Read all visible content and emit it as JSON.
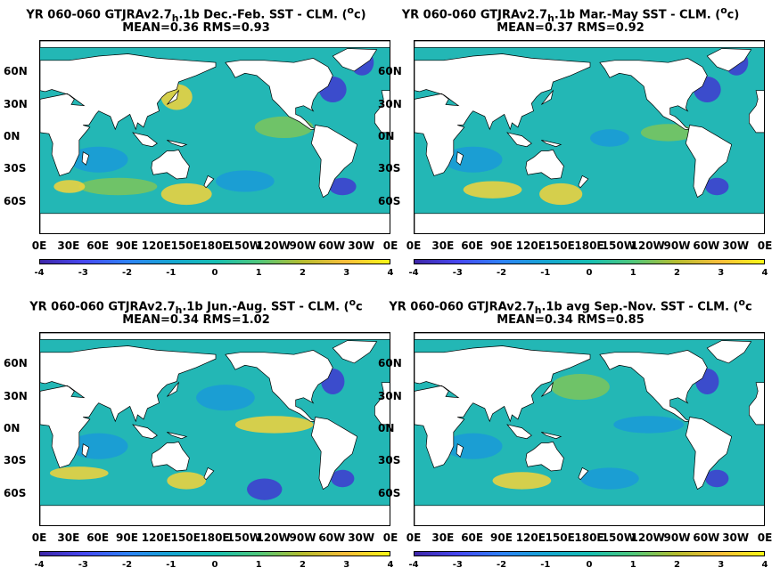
{
  "panels": [
    {
      "title": "YR 060-060 GTJRAv2.7",
      "subscript": "h",
      "title_rest": ".1b  Dec.-Feb. SST - CLM. (",
      "unit_sup": "o",
      "unit_rest": "c)",
      "stats": "MEAN=0.36   RMS=0.93"
    },
    {
      "title": "YR 060-060 GTJRAv2.7",
      "subscript": "h",
      "title_rest": ".1b Mar.-May SST - CLM. (",
      "unit_sup": "o",
      "unit_rest": "c)",
      "stats": "MEAN=0.37   RMS=0.92"
    },
    {
      "title": "YR 060-060 GTJRAv2.7",
      "subscript": "h",
      "title_rest": ".1b Jun.-Aug. SST - CLM. (",
      "unit_sup": "o",
      "unit_rest": "c",
      "stats": "MEAN=0.34   RMS=1.02"
    },
    {
      "title": "YR 060-060 GTJRAv2.7",
      "subscript": "h",
      "title_rest": ".1b avg Sep.-Nov. SST - CLM. (",
      "unit_sup": "o",
      "unit_rest": "c",
      "stats": "MEAN=0.34   RMS=0.85"
    }
  ],
  "lat_labels": [
    "60N",
    "30N",
    "0N",
    "30S",
    "60S"
  ],
  "lon_labels": [
    "0E",
    "30E",
    "60E",
    "90E",
    "120E",
    "150E",
    "180E",
    "150W",
    "120W",
    "90W",
    "60W",
    "30W",
    "0E"
  ],
  "colorbar": {
    "ticks": [
      "-4",
      "-3",
      "-2",
      "-1",
      "0",
      "1",
      "2",
      "3",
      "4"
    ],
    "colors": [
      "#3e26a8",
      "#4748f1",
      "#2e82f6",
      "#16a6d3",
      "#16bfb4",
      "#4fc87c",
      "#b6bd2f",
      "#f9be3b",
      "#f9f716"
    ]
  },
  "map_colors": {
    "ocean": "#23b7b5",
    "land": "#ffffff",
    "warm": "#f5d33a",
    "cool": "#2e6ee6",
    "very_cool": "#3f3ad0",
    "mild": "#7cc65a",
    "light_cool": "#1a9ad8"
  }
}
